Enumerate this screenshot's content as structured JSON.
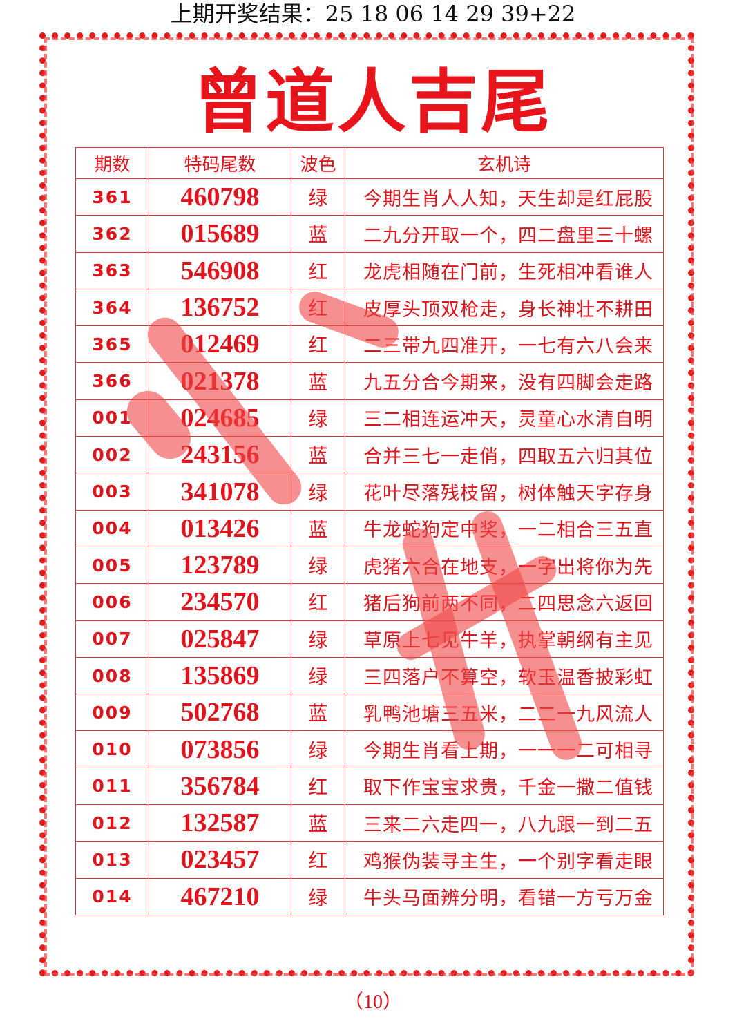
{
  "header": {
    "last_result": "上期开奖结果：25 18 06 14 29 39+22"
  },
  "title": "曾道人吉尾",
  "table": {
    "columns": [
      "期数",
      "特码尾数",
      "波色",
      "玄机诗"
    ],
    "rows": [
      [
        "361",
        "460798",
        "绿",
        "今期生肖人人知，天生却是红屁股"
      ],
      [
        "362",
        "015689",
        "蓝",
        "二九分开取一个，四二盘里三十螺"
      ],
      [
        "363",
        "546908",
        "红",
        "龙虎相随在门前，生死相冲看谁人"
      ],
      [
        "364",
        "136752",
        "红",
        "皮厚头顶双枪走，身长神壮不耕田"
      ],
      [
        "365",
        "012469",
        "红",
        "二三带九四准开，一七有六八会来"
      ],
      [
        "366",
        "021378",
        "蓝",
        "九五分合今期来，没有四脚会走路"
      ],
      [
        "001",
        "024685",
        "绿",
        "三二相连运冲天，灵童心水清自明"
      ],
      [
        "002",
        "243156",
        "蓝",
        "合并三七一走俏，四取五六归其位"
      ],
      [
        "003",
        "341078",
        "绿",
        "花叶尽落残枝留，树体触天字存身"
      ],
      [
        "004",
        "013426",
        "蓝",
        "牛龙蛇狗定中奖，一二相合三五直"
      ],
      [
        "005",
        "123789",
        "绿",
        "虎猪六合在地支，一字出将你为先"
      ],
      [
        "006",
        "234570",
        "红",
        "猪后狗前两不同，二四思念六返回"
      ],
      [
        "007",
        "025847",
        "绿",
        "草原上七见牛羊，执掌朝纲有主见"
      ],
      [
        "008",
        "135869",
        "绿",
        "三四落户不算空，软玉温香披彩虹"
      ],
      [
        "009",
        "502768",
        "蓝",
        "乳鸭池塘三五米，二二一九风流人"
      ],
      [
        "010",
        "073856",
        "绿",
        "今期生肖看上期，一一一二可相寻"
      ],
      [
        "011",
        "356784",
        "红",
        "取下作宝宝求贵，千金一撒二值钱"
      ],
      [
        "012",
        "132587",
        "蓝",
        "三来二六走四一，八九跟一到二五"
      ],
      [
        "013",
        "023457",
        "红",
        "鸡猴伪装寻主生，一个别字看走眼"
      ],
      [
        "014",
        "467210",
        "绿",
        "牛头马面辨分明，看错一方亏万金"
      ]
    ]
  },
  "page_number": "（10）",
  "colors": {
    "accent": "#e0141c",
    "stamp": "#f04646"
  }
}
